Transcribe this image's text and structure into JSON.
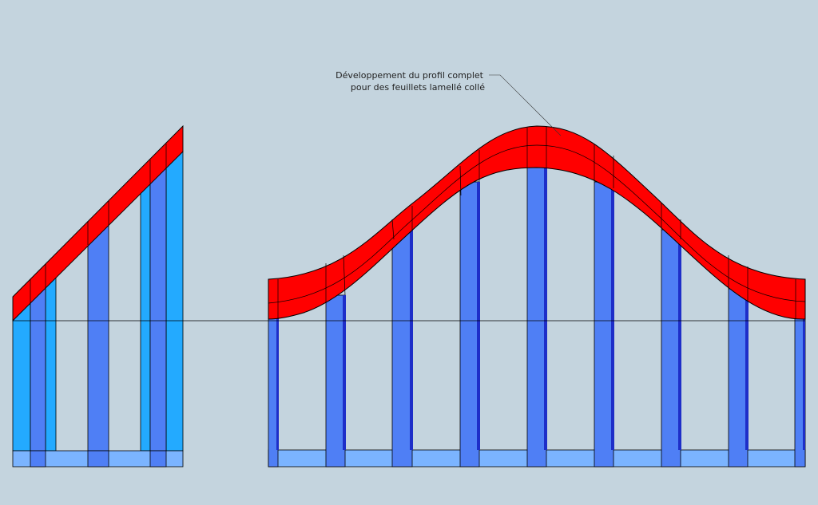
{
  "annotation": {
    "line1": "Développement du profil complet",
    "line2": "pour des feuillets lamellé collé"
  },
  "colors": {
    "background": "#c4d4de",
    "laminated_profile": "#ff0000",
    "stud_dark_blue": "#4f7ff5",
    "stud_deep_blue": "#1e2ec8",
    "stud_light_blue": "#23aaff",
    "sole_plate": "#7bb4ff",
    "outline": "#000000"
  }
}
